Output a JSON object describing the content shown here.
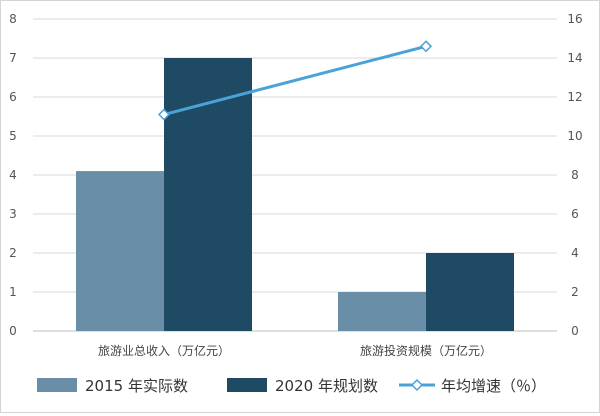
{
  "chart_data": {
    "type": "bar",
    "categories": [
      "旅游业总收入（万亿元）",
      "旅游投资规模（万亿元）"
    ],
    "series": [
      {
        "name": "2015 年实际数",
        "values": [
          4.1,
          1.0
        ],
        "color": "#6b8ea8",
        "axis": "left"
      },
      {
        "name": "2020 年规划数",
        "values": [
          7.0,
          2.0
        ],
        "color": "#1f4a63",
        "axis": "left"
      }
    ],
    "line_series": [
      {
        "name": "年均增速（％）",
        "values": [
          11.1,
          14.6
        ],
        "color": "#4aa3d8",
        "axis": "right",
        "marker": "diamond-open"
      }
    ],
    "ylim_left": [
      0,
      8
    ],
    "ylim_right": [
      0,
      16
    ],
    "yticks_left": [
      "0",
      "1",
      "2",
      "3",
      "4",
      "5",
      "6",
      "7",
      "8"
    ],
    "yticks_right": [
      "0",
      "2",
      "4",
      "6",
      "8",
      "10",
      "12",
      "14",
      "16"
    ],
    "title": "",
    "xlabel": "",
    "ylabel": "",
    "grid": true,
    "legend_position": "bottom"
  }
}
